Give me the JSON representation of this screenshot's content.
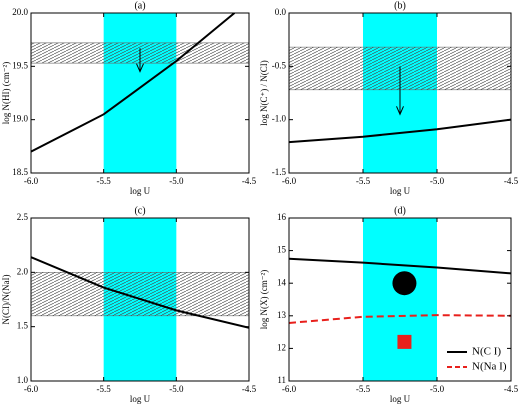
{
  "chart_data": [
    {
      "type": "line",
      "title": "(a)",
      "xlabel": "log U",
      "ylabel": "log N(HI) (cm⁻²)",
      "xlim": [
        -6.0,
        -4.5
      ],
      "ylim": [
        18.5,
        20.0
      ],
      "xticks": [
        {
          "value": -6.0,
          "label": "-6.0"
        },
        -5.5,
        {
          "value": -5.0,
          "label": "-5.0"
        },
        -4.5
      ],
      "yticks": [
        18.5,
        {
          "value": 19.0,
          "label": "19.0"
        },
        19.5,
        {
          "value": 20.0,
          "label": "20.0"
        }
      ],
      "band_x": [
        -5.5,
        -5.0
      ],
      "band_y": [
        19.53,
        19.72
      ],
      "band_color": "#00ffff",
      "arrow": {
        "x": -5.25,
        "y": [
          19.67,
          19.45
        ]
      },
      "series": [
        {
          "color": "#000000",
          "x": [
            -6.0,
            -5.5,
            -5.0,
            -4.6
          ],
          "values": [
            18.7,
            19.05,
            19.55,
            20.0
          ]
        }
      ]
    },
    {
      "type": "line",
      "title": "(b)",
      "xlabel": "log U",
      "ylabel": "log N(C⁺) / N(CI)",
      "xlim": [
        -6.0,
        -4.5
      ],
      "ylim": [
        -1.5,
        0.0
      ],
      "xticks": [
        {
          "value": -6.0,
          "label": "-6.0"
        },
        -5.5,
        {
          "value": -5.0,
          "label": "-5.0"
        },
        -4.5
      ],
      "yticks": [
        -1.5,
        {
          "value": -1.0,
          "label": "-1.0"
        },
        -0.5,
        {
          "value": 0.0,
          "label": "0.0"
        }
      ],
      "band_x": [
        -5.5,
        -5.0
      ],
      "band_y": [
        -0.72,
        -0.32
      ],
      "band_color": "#00ffff",
      "arrow": {
        "x": -5.25,
        "y": [
          -0.5,
          -0.95
        ]
      },
      "series": [
        {
          "color": "#000000",
          "x": [
            -6.0,
            -5.5,
            -5.0,
            -4.5
          ],
          "values": [
            -1.21,
            -1.16,
            -1.09,
            -1.0
          ]
        }
      ]
    },
    {
      "type": "line",
      "title": "(c)",
      "xlabel": "log U",
      "ylabel": "N(CI)/N(NaI)",
      "xlim": [
        -6.0,
        -4.5
      ],
      "ylim": [
        1.0,
        2.5
      ],
      "xticks": [
        {
          "value": -6.0,
          "label": "-6.0"
        },
        -5.5,
        {
          "value": -5.0,
          "label": "-5.0"
        },
        -4.5
      ],
      "yticks": [
        {
          "value": 1.0,
          "label": "1.0"
        },
        1.5,
        {
          "value": 2.0,
          "label": "2.0"
        },
        2.5
      ],
      "band_x": [
        -5.5,
        -5.0
      ],
      "band_y": [
        1.6,
        2.0
      ],
      "band_color": "#00ffff",
      "series": [
        {
          "color": "#000000",
          "x": [
            -6.0,
            -5.5,
            -5.0,
            -4.5
          ],
          "values": [
            2.14,
            1.86,
            1.65,
            1.49
          ]
        }
      ]
    },
    {
      "type": "line",
      "title": "(d)",
      "xlabel": "log U",
      "ylabel": "log N(X) (cm⁻²)",
      "xlim": [
        -6.0,
        -4.5
      ],
      "ylim": [
        11,
        16
      ],
      "xticks": [
        {
          "value": -6.0,
          "label": "-6.0"
        },
        -5.5,
        {
          "value": -5.0,
          "label": "-5.0"
        },
        -4.5
      ],
      "yticks": [
        11,
        12,
        13,
        14,
        15,
        16
      ],
      "band_x": [
        -5.5,
        -5.0
      ],
      "band_color": "#00ffff",
      "legend": "lower right",
      "series": [
        {
          "name": "N(C I)",
          "color": "#000000",
          "x": [
            -6.0,
            -5.5,
            -5.0,
            -4.5
          ],
          "values": [
            14.75,
            14.63,
            14.48,
            14.3
          ]
        },
        {
          "name": "N(Na I)",
          "color": "#e8201c",
          "dashed": true,
          "x": [
            -6.0,
            -5.5,
            -5.0,
            -4.5
          ],
          "values": [
            12.78,
            12.97,
            13.02,
            13.0
          ]
        }
      ],
      "markers": [
        {
          "x": -5.22,
          "y": 14.0,
          "color": "#000000",
          "shape": "circle"
        },
        {
          "x": -5.22,
          "y": 12.2,
          "color": "#e8201c",
          "shape": "square"
        }
      ]
    }
  ]
}
